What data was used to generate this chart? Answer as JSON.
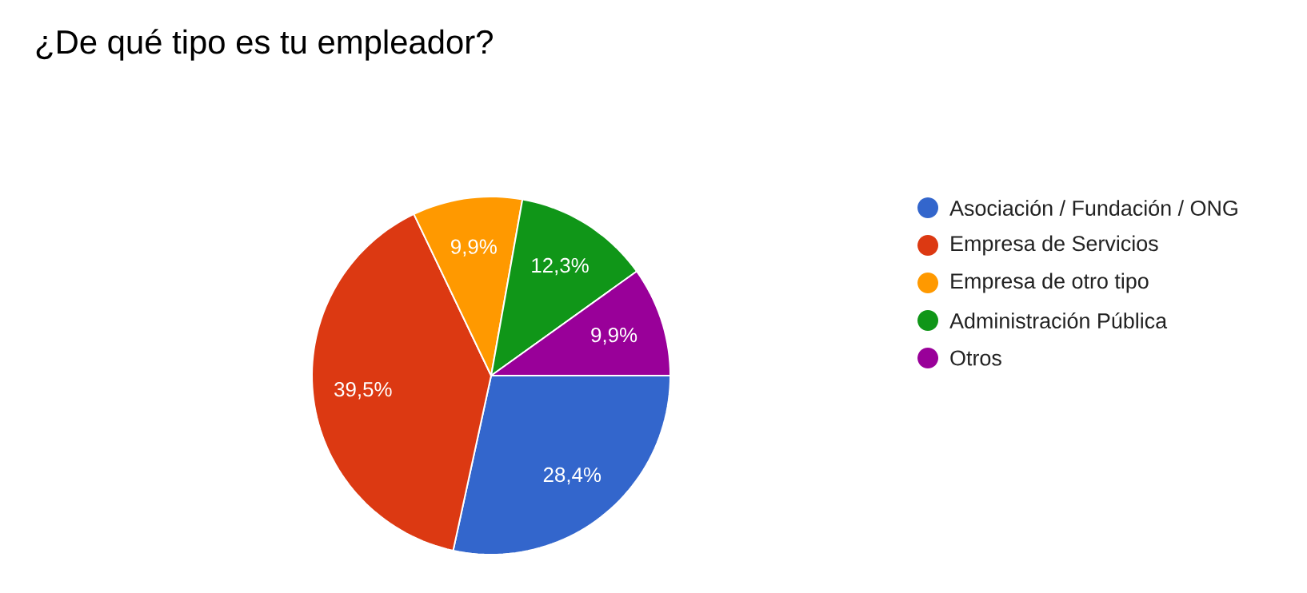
{
  "chart_data": {
    "type": "pie",
    "title": "¿De qué tipo es tu empleador?",
    "categories": [
      "Asociación / Fundación / ONG",
      "Empresa de Servicios",
      "Empresa de otro tipo",
      "Administración Pública",
      "Otros"
    ],
    "values": [
      28.4,
      39.5,
      9.9,
      12.3,
      9.9
    ],
    "value_labels": [
      "28,4%",
      "39,5%",
      "9,9%",
      "12,3%",
      "9,9%"
    ],
    "colors": [
      "#3366cc",
      "#dc3912",
      "#ff9900",
      "#109618",
      "#990099"
    ],
    "legend": "right"
  }
}
